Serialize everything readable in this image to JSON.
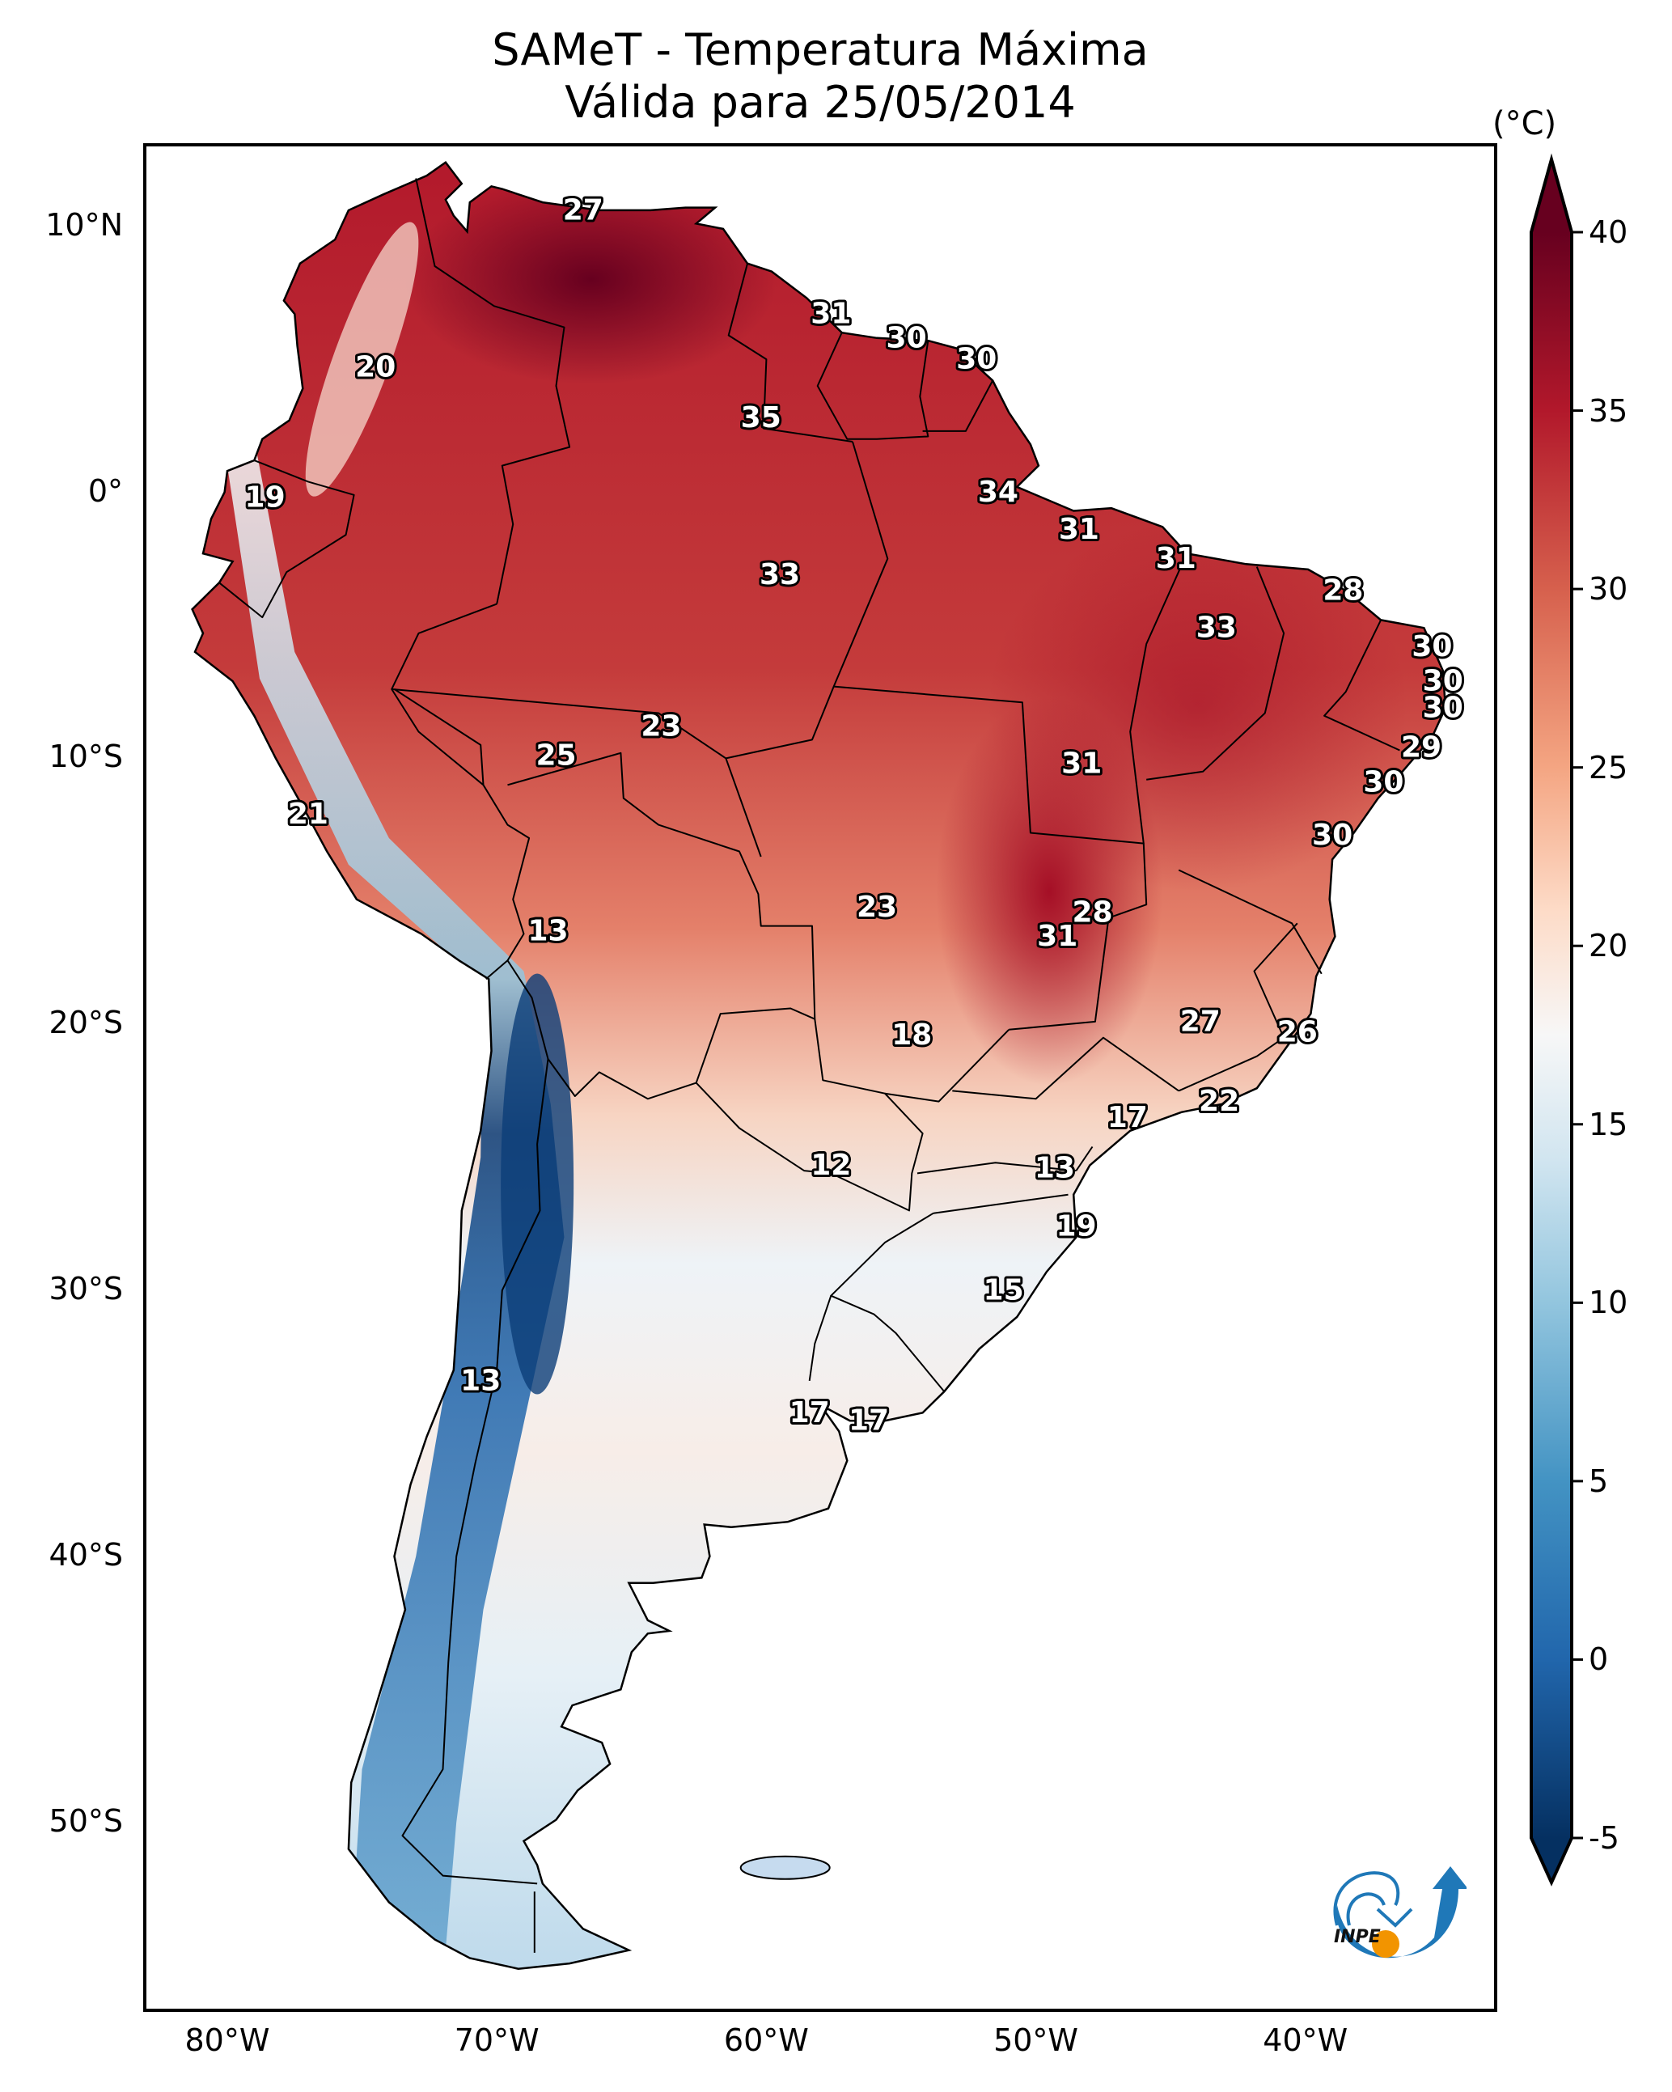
{
  "header": {
    "title_line1": "SAMeT - Temperatura Máxima",
    "title_line2": "Válida para 25/05/2014"
  },
  "chart_data": {
    "type": "heatmap",
    "title": "SAMeT - Temperatura Máxima",
    "subtitle": "Válida para 25/05/2014",
    "variable": "Maximum temperature",
    "units": "°C",
    "projection": "PlateCarree",
    "extent": {
      "lon": [
        -83,
        -33
      ],
      "lat": [
        -57,
        13
      ]
    },
    "lon_ticks": [
      {
        "value": -80,
        "label": "80°W"
      },
      {
        "value": -70,
        "label": "70°W"
      },
      {
        "value": -60,
        "label": "60°W"
      },
      {
        "value": -50,
        "label": "50°W"
      },
      {
        "value": -40,
        "label": "40°W"
      }
    ],
    "lat_ticks": [
      {
        "value": 10,
        "label": "10°N"
      },
      {
        "value": 0,
        "label": "0°"
      },
      {
        "value": -10,
        "label": "10°S"
      },
      {
        "value": -20,
        "label": "20°S"
      },
      {
        "value": -30,
        "label": "30°S"
      },
      {
        "value": -40,
        "label": "40°S"
      },
      {
        "value": -50,
        "label": "50°S"
      }
    ],
    "colorbar": {
      "label": "(°C)",
      "colormap": "RdBu_r",
      "range": [
        -5,
        40
      ],
      "extend": "both",
      "ticks": [
        -5,
        0,
        5,
        10,
        15,
        20,
        25,
        30,
        35,
        40
      ],
      "tick_labels": [
        "-5",
        "0",
        "5",
        "10",
        "15",
        "20",
        "25",
        "30",
        "35",
        "40"
      ],
      "stops": [
        {
          "v": -5,
          "color": "#053061"
        },
        {
          "v": 0,
          "color": "#2166ac"
        },
        {
          "v": 5,
          "color": "#4393c3"
        },
        {
          "v": 10,
          "color": "#92c5de"
        },
        {
          "v": 14,
          "color": "#d1e5f0"
        },
        {
          "v": 17.5,
          "color": "#f7f7f7"
        },
        {
          "v": 21,
          "color": "#fddbc7"
        },
        {
          "v": 25,
          "color": "#f4a582"
        },
        {
          "v": 30,
          "color": "#d6604d"
        },
        {
          "v": 35,
          "color": "#b2182b"
        },
        {
          "v": 40,
          "color": "#67001f"
        }
      ]
    },
    "station_labels": [
      {
        "lon": -66.8,
        "lat": 10.6,
        "value": "27"
      },
      {
        "lon": -74.5,
        "lat": 4.7,
        "value": "20"
      },
      {
        "lon": -78.6,
        "lat": -0.2,
        "value": "19"
      },
      {
        "lon": -57.6,
        "lat": 6.7,
        "value": "31"
      },
      {
        "lon": -54.8,
        "lat": 5.8,
        "value": "30"
      },
      {
        "lon": -52.2,
        "lat": 5.0,
        "value": "30"
      },
      {
        "lon": -60.2,
        "lat": 2.8,
        "value": "35"
      },
      {
        "lon": -51.4,
        "lat": 0.0,
        "value": "34"
      },
      {
        "lon": -48.4,
        "lat": -1.4,
        "value": "31"
      },
      {
        "lon": -59.5,
        "lat": -3.1,
        "value": "33"
      },
      {
        "lon": -44.8,
        "lat": -2.5,
        "value": "31"
      },
      {
        "lon": -38.6,
        "lat": -3.7,
        "value": "28"
      },
      {
        "lon": -43.3,
        "lat": -5.1,
        "value": "33"
      },
      {
        "lon": -35.3,
        "lat": -5.8,
        "value": "30"
      },
      {
        "lon": -34.9,
        "lat": -7.1,
        "value": "30"
      },
      {
        "lon": -34.9,
        "lat": -8.1,
        "value": "30"
      },
      {
        "lon": -35.7,
        "lat": -9.6,
        "value": "29"
      },
      {
        "lon": -37.1,
        "lat": -10.9,
        "value": "30"
      },
      {
        "lon": -39.0,
        "lat": -12.9,
        "value": "30"
      },
      {
        "lon": -63.9,
        "lat": -8.8,
        "value": "23"
      },
      {
        "lon": -67.8,
        "lat": -9.9,
        "value": "25"
      },
      {
        "lon": -48.3,
        "lat": -10.2,
        "value": "31"
      },
      {
        "lon": -77.0,
        "lat": -12.1,
        "value": "21"
      },
      {
        "lon": -55.9,
        "lat": -15.6,
        "value": "23"
      },
      {
        "lon": -47.9,
        "lat": -15.8,
        "value": "28"
      },
      {
        "lon": -49.2,
        "lat": -16.7,
        "value": "31"
      },
      {
        "lon": -68.1,
        "lat": -16.5,
        "value": "13"
      },
      {
        "lon": -43.9,
        "lat": -19.9,
        "value": "27"
      },
      {
        "lon": -40.3,
        "lat": -20.3,
        "value": "26"
      },
      {
        "lon": -54.6,
        "lat": -20.4,
        "value": "18"
      },
      {
        "lon": -43.2,
        "lat": -22.9,
        "value": "22"
      },
      {
        "lon": -46.6,
        "lat": -23.5,
        "value": "17"
      },
      {
        "lon": -57.6,
        "lat": -25.3,
        "value": "12"
      },
      {
        "lon": -49.3,
        "lat": -25.4,
        "value": "13"
      },
      {
        "lon": -48.5,
        "lat": -27.6,
        "value": "19"
      },
      {
        "lon": -51.2,
        "lat": -30.0,
        "value": "15"
      },
      {
        "lon": -70.6,
        "lat": -33.4,
        "value": "13"
      },
      {
        "lon": -58.4,
        "lat": -34.6,
        "value": "17"
      },
      {
        "lon": -56.2,
        "lat": -34.9,
        "value": "17"
      }
    ]
  },
  "logo": {
    "text": "INPE",
    "blue": "#1f78b8",
    "orange": "#f29400"
  }
}
